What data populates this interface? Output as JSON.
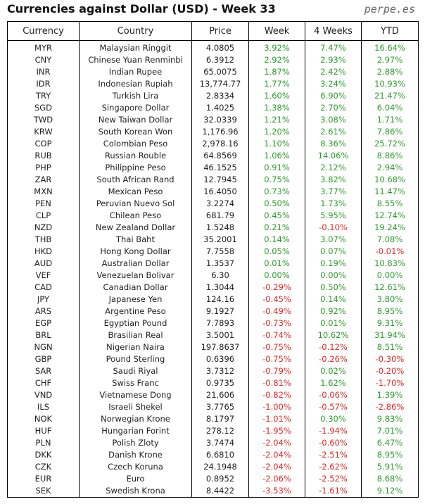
{
  "header": {
    "title": "Currencies against Dollar (USD) - Week 33",
    "site": "perpe.es"
  },
  "table": {
    "columns": [
      "Currency",
      "Country",
      "Price",
      "Week",
      "4 Weeks",
      "YTD"
    ],
    "rows": [
      [
        "MYR",
        "Malaysian Ringgit",
        "4.0805",
        "3.92%",
        "7.47%",
        "16.64%"
      ],
      [
        "CNY",
        "Chinese Yuan Renminbi",
        "6.3912",
        "2.92%",
        "2.93%",
        "2.97%"
      ],
      [
        "INR",
        "Indian Rupee",
        "65.0075",
        "1.87%",
        "2.42%",
        "2.88%"
      ],
      [
        "IDR",
        "Indonesian Rupiah",
        "13,774.77",
        "1.77%",
        "3.24%",
        "10.93%"
      ],
      [
        "TRY",
        "Turkish Lira",
        "2.8334",
        "1.60%",
        "6.90%",
        "21.47%"
      ],
      [
        "SGD",
        "Singapore Dollar",
        "1.4025",
        "1.38%",
        "2.70%",
        "6.04%"
      ],
      [
        "TWD",
        "New Taiwan Dollar",
        "32.0339",
        "1.21%",
        "3.08%",
        "1.71%"
      ],
      [
        "KRW",
        "South Korean Won",
        "1,176.96",
        "1.20%",
        "2.61%",
        "7.86%"
      ],
      [
        "COP",
        "Colombian Peso",
        "2,978.16",
        "1.10%",
        "8.36%",
        "25.72%"
      ],
      [
        "RUB",
        "Russian Rouble",
        "64.8569",
        "1.06%",
        "14.06%",
        "8.86%"
      ],
      [
        "PHP",
        "Philippine Peso",
        "46.1525",
        "0.91%",
        "2.12%",
        "2.94%"
      ],
      [
        "ZAR",
        "South African Rand",
        "12.7945",
        "0.75%",
        "3.82%",
        "10.68%"
      ],
      [
        "MXN",
        "Mexican Peso",
        "16.4050",
        "0.73%",
        "3.77%",
        "11.47%"
      ],
      [
        "PEN",
        "Peruvian Nuevo Sol",
        "3.2274",
        "0.50%",
        "1.73%",
        "8.55%"
      ],
      [
        "CLP",
        "Chilean Peso",
        "681.79",
        "0.45%",
        "5.95%",
        "12.74%"
      ],
      [
        "NZD",
        "New Zealand Dollar",
        "1.5248",
        "0.21%",
        "-0.10%",
        "19.24%"
      ],
      [
        "THB",
        "Thai Baht",
        "35.2001",
        "0.14%",
        "3.07%",
        "7.08%"
      ],
      [
        "HKD",
        "Hong Kong Dollar",
        "7.7558",
        "0.05%",
        "0.07%",
        "-0.01%"
      ],
      [
        "AUD",
        "Australian Dollar",
        "1.3537",
        "0.01%",
        "0.19%",
        "10.83%"
      ],
      [
        "VEF",
        "Venezuelan Bolivar",
        "6.30",
        "0.00%",
        "0.00%",
        "0.00%"
      ],
      [
        "CAD",
        "Canadian Dollar",
        "1.3044",
        "-0.29%",
        "0.50%",
        "12.61%"
      ],
      [
        "JPY",
        "Japanese Yen",
        "124.16",
        "-0.45%",
        "0.14%",
        "3.80%"
      ],
      [
        "ARS",
        "Argentine Peso",
        "9.1927",
        "-0.49%",
        "0.92%",
        "8.95%"
      ],
      [
        "EGP",
        "Egyptian Pound",
        "7.7893",
        "-0.73%",
        "0.01%",
        "9.31%"
      ],
      [
        "BRL",
        "Brasilian Real",
        "3.5001",
        "-0.74%",
        "10.62%",
        "31.94%"
      ],
      [
        "NGN",
        "Nigerian Naira",
        "197.8637",
        "-0.75%",
        "-0.12%",
        "8.51%"
      ],
      [
        "GBP",
        "Pound Sterling",
        "0.6396",
        "-0.75%",
        "-0.26%",
        "-0.30%"
      ],
      [
        "SAR",
        "Saudi Riyal",
        "3.7312",
        "-0.79%",
        "0.02%",
        "-0.20%"
      ],
      [
        "CHF",
        "Swiss Franc",
        "0.9735",
        "-0.81%",
        "1.62%",
        "-1.70%"
      ],
      [
        "VND",
        "Vietnamese Dong",
        "21,606",
        "-0.82%",
        "-0.06%",
        "1.39%"
      ],
      [
        "ILS",
        "Israeli Shekel",
        "3.7765",
        "-1.00%",
        "-0.57%",
        "-2.86%"
      ],
      [
        "NOK",
        "Norwegian Krone",
        "8.1797",
        "-1.01%",
        "0.30%",
        "9.83%"
      ],
      [
        "HUF",
        "Hungarian Forint",
        "278.12",
        "-1.95%",
        "-1.94%",
        "7.01%"
      ],
      [
        "PLN",
        "Polish Zloty",
        "3.7474",
        "-2.04%",
        "-0.60%",
        "6.47%"
      ],
      [
        "DKK",
        "Danish Krone",
        "6.6810",
        "-2.04%",
        "-2.51%",
        "8.95%"
      ],
      [
        "CZK",
        "Czech Koruna",
        "24.1948",
        "-2.04%",
        "-2.62%",
        "5.91%"
      ],
      [
        "EUR",
        "Euro",
        "0.8952",
        "-2.06%",
        "-2.52%",
        "8.68%"
      ],
      [
        "SEK",
        "Swedish Krona",
        "8.4422",
        "-3.53%",
        "-1.61%",
        "9.12%"
      ]
    ]
  }
}
